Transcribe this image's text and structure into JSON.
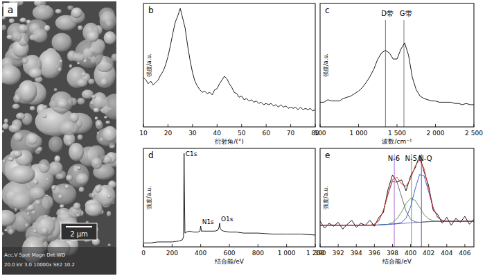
{
  "chart_data": [
    {
      "type": "image",
      "title": "a",
      "scale_bar": "2 μm",
      "info_header": "Acc.V  Spot Magn   Det  WD",
      "info_values": "20.0 kV 3.0  10000x  SE2 10.2"
    },
    {
      "type": "line",
      "title": "b",
      "x_label": "衍射角/(°)",
      "y_label": "强度/a.u.",
      "x": [
        10,
        11,
        12,
        13,
        14,
        15,
        16,
        17,
        18,
        19,
        20,
        21,
        22,
        23,
        24,
        25,
        26,
        27,
        28,
        29,
        30,
        31,
        32,
        33,
        34,
        35,
        36,
        37,
        38,
        39,
        40,
        41,
        42,
        43,
        44,
        45,
        46,
        47,
        48,
        49,
        50,
        51,
        52,
        53,
        54,
        55,
        56,
        57,
        58,
        59,
        60,
        61,
        62,
        63,
        64,
        65,
        66,
        67,
        68,
        69,
        70,
        71,
        72,
        73,
        74,
        75,
        76,
        77,
        78,
        79,
        80
      ],
      "series": [
        {
          "color": "#000000",
          "values": [
            40,
            38,
            35,
            37,
            34,
            36,
            38,
            42,
            45,
            50,
            57,
            66,
            76,
            85,
            90,
            96,
            88,
            80,
            66,
            54,
            44,
            37,
            33,
            30,
            28,
            29,
            27,
            28,
            26,
            30,
            31,
            35,
            38,
            41,
            39,
            35,
            32,
            28,
            27,
            24,
            25,
            22,
            23,
            21,
            22,
            20,
            21,
            19,
            20,
            18,
            19,
            18,
            19,
            17,
            18,
            16,
            18,
            16,
            17,
            15,
            16,
            15,
            16,
            14,
            16,
            14,
            15,
            14,
            15,
            13,
            14
          ]
        }
      ],
      "xlim": [
        10,
        80
      ],
      "ylim": [
        0,
        100
      ],
      "xticks": [
        10,
        20,
        30,
        40,
        50,
        60,
        70,
        80
      ],
      "tick_labels": "x"
    },
    {
      "type": "line",
      "title": "c",
      "x_label": "波数/cm⁻¹",
      "y_label": "强度/a.u.",
      "x": [
        500,
        550,
        600,
        650,
        700,
        750,
        800,
        850,
        900,
        950,
        1000,
        1050,
        1100,
        1150,
        1200,
        1250,
        1300,
        1350,
        1400,
        1450,
        1500,
        1550,
        1600,
        1650,
        1700,
        1750,
        1800,
        1850,
        1900,
        1950,
        2000,
        2050,
        2100,
        2150,
        2200,
        2250,
        2300,
        2350,
        2400,
        2450,
        2500
      ],
      "series": [
        {
          "color": "#000000",
          "values": [
            20,
            20,
            22,
            21,
            21,
            21,
            23,
            24,
            25,
            27,
            29,
            32,
            36,
            41,
            47,
            55,
            60,
            62,
            60,
            55,
            55,
            63,
            68,
            58,
            40,
            30,
            25,
            23,
            22,
            21,
            21,
            20,
            20,
            20,
            20,
            19,
            19,
            18,
            19,
            18,
            18
          ]
        }
      ],
      "annotations": [
        {
          "text": "D带",
          "x": 1350,
          "color": "#777777",
          "line_style": "solid"
        },
        {
          "text": "G带",
          "x": 1590,
          "color": "#777777",
          "line_style": "solid"
        }
      ],
      "xlim": [
        500,
        2500
      ],
      "ylim": [
        0,
        100
      ],
      "xticks": [
        500,
        {
          "value": 1000,
          "label": "1 000"
        },
        {
          "value": 1500,
          "label": "1 500"
        },
        {
          "value": 2000,
          "label": "2 000"
        },
        {
          "value": 2500,
          "label": "2 500"
        }
      ],
      "tick_labels": "x"
    },
    {
      "type": "line",
      "title": "d",
      "x_label": "结合能/eV",
      "y_label": "强度/a.u.",
      "x": [
        0,
        50,
        100,
        150,
        200,
        250,
        270,
        280,
        284,
        286,
        290,
        300,
        320,
        350,
        380,
        395,
        400,
        405,
        420,
        450,
        500,
        520,
        528,
        532,
        536,
        545,
        560,
        600,
        650,
        700,
        800,
        900,
        1000,
        1100,
        1200
      ],
      "series": [
        {
          "color": "#000000",
          "values": [
            4,
            4,
            5,
            5,
            5,
            6,
            7,
            10,
            95,
            60,
            14,
            15,
            16,
            15,
            15,
            16,
            21,
            16,
            16,
            16,
            16,
            17,
            20,
            24,
            19,
            17,
            16,
            15,
            15,
            14,
            14,
            13,
            13,
            13,
            12
          ]
        }
      ],
      "annotations": [
        {
          "text": "C1s",
          "x": 284
        },
        {
          "text": "N1s",
          "x": 400
        },
        {
          "text": "O1s",
          "x": 532
        }
      ],
      "xlim": [
        0,
        1200
      ],
      "ylim": [
        0,
        100
      ],
      "xticks": [
        0,
        200,
        400,
        600,
        800,
        {
          "value": 1000,
          "label": "1 000"
        },
        {
          "value": 1200,
          "label": "1 200"
        }
      ],
      "tick_labels": "x"
    },
    {
      "type": "line",
      "title": "e",
      "x_label": "结合能/eV",
      "y_label": "强度/a.u.",
      "x": [
        390,
        390.5,
        391,
        391.5,
        392,
        392.5,
        393,
        393.5,
        394,
        394.5,
        395,
        395.5,
        396,
        396.5,
        397,
        397.5,
        398,
        398.5,
        399,
        399.5,
        400,
        400.5,
        401,
        401.5,
        402,
        402.5,
        403,
        403.5,
        404,
        404.5,
        405,
        405.5,
        406,
        406.5,
        407
      ],
      "series": [
        {
          "color": "#6a5acd",
          "values": [
            22,
            22,
            22,
            22,
            22,
            22,
            22,
            22,
            22,
            22,
            22,
            22,
            22,
            22.3,
            22.6,
            22.9,
            23.2,
            23.5,
            23.8,
            24.1,
            24.4,
            24.7,
            25,
            25.3,
            25.6,
            25.9,
            26,
            26,
            26,
            26,
            26,
            26,
            26,
            26,
            26
          ]
        },
        {
          "color": "#606060",
          "values": [
            22,
            22,
            22,
            22,
            22,
            22,
            22,
            22,
            22,
            22,
            22,
            22,
            23,
            26.8,
            37.2,
            53.5,
            66.8,
            65.5,
            51.2,
            36.3,
            28,
            25.4,
            25,
            25.3,
            25.6,
            25.9,
            26,
            26,
            26,
            26,
            26,
            26,
            26,
            26,
            26
          ]
        },
        {
          "color": "#4a8a4a",
          "values": [
            22,
            22,
            22,
            22,
            22,
            22,
            22,
            22,
            22,
            22,
            22,
            22,
            22,
            22.3,
            22.6,
            22.9,
            24.8,
            28.6,
            35.5,
            44.1,
            49.2,
            47.3,
            40.2,
            32.7,
            28.3,
            26.6,
            26,
            26,
            26,
            26,
            26,
            26,
            26,
            26,
            26
          ]
        },
        {
          "color": "#3050c0",
          "values": [
            22,
            22,
            22,
            22,
            22,
            22,
            22,
            22,
            22,
            22,
            22,
            22,
            22,
            22.3,
            22.6,
            22.9,
            23.2,
            23.5,
            24.9,
            29.3,
            40.6,
            58.7,
            73.5,
            71.9,
            55.9,
            39.3,
            30,
            26.8,
            26,
            26,
            26,
            26,
            26,
            26,
            26
          ]
        },
        {
          "color": "#000000",
          "values": [
            26,
            19,
            24,
            21,
            25,
            18,
            23,
            27,
            20,
            24,
            22,
            27,
            21,
            30,
            35,
            58,
            73,
            66,
            68,
            57,
            72,
            80,
            93,
            76,
            62,
            37,
            33,
            24,
            30,
            22,
            29,
            25,
            31,
            23,
            28
          ]
        },
        {
          "color": "#e03030",
          "values": [
            22,
            22,
            22,
            22,
            22,
            22,
            22,
            22,
            22,
            22,
            22,
            22,
            23,
            26.8,
            37.2,
            53.5,
            68.4,
            70.6,
            64,
            61.5,
            69,
            82,
            88.7,
            79.3,
            58.6,
            40,
            30,
            26.8,
            26,
            26,
            26,
            26,
            26,
            26,
            26
          ]
        }
      ],
      "annotations": [
        {
          "text": "N-6",
          "x": 398.2,
          "color": "#b070d0",
          "line_style": "solid"
        },
        {
          "text": "N-5",
          "x": 400.1,
          "color": "#40b040",
          "line_style": "solid"
        },
        {
          "text": "N-Q",
          "x": 401.2,
          "color": "#5060e0",
          "line_style": "solid"
        }
      ],
      "xlim": [
        390,
        407
      ],
      "ylim": [
        0,
        100
      ],
      "xticks": [
        390,
        392,
        394,
        396,
        398,
        400,
        402,
        404,
        406
      ],
      "tick_labels": "x"
    }
  ]
}
